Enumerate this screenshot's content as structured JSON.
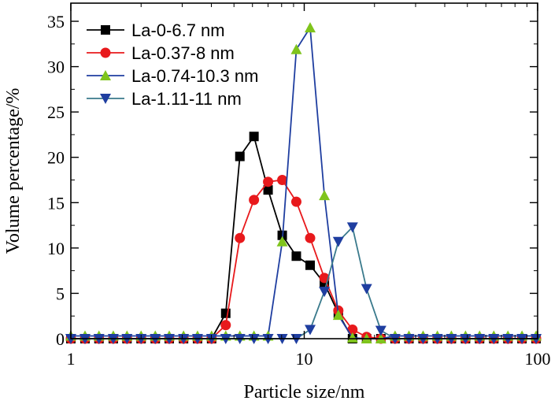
{
  "chart_data": {
    "type": "line",
    "xlabel": "Particle size/nm",
    "ylabel": "Volume percentage/%",
    "x_scale": "log",
    "xlim": [
      1,
      100
    ],
    "ylim": [
      0,
      37
    ],
    "x_ticks": [
      1,
      10,
      100
    ],
    "x_tick_labels": [
      "1",
      "10",
      "100"
    ],
    "y_ticks": [
      0,
      5,
      10,
      15,
      20,
      25,
      30,
      35
    ],
    "y_tick_labels": [
      "0",
      "5",
      "10",
      "15",
      "20",
      "25",
      "30",
      "35"
    ],
    "grid": false,
    "legend_position": "top-left",
    "x": [
      1.0,
      1.15,
      1.32,
      1.52,
      1.74,
      2.0,
      2.3,
      2.64,
      3.04,
      3.49,
      4.01,
      4.61,
      5.3,
      6.09,
      7.0,
      8.05,
      9.25,
      10.6,
      12.2,
      14.0,
      16.1,
      18.5,
      21.3,
      24.5,
      28.1,
      32.3,
      37.2,
      42.7,
      49.1,
      56.4,
      64.9,
      74.6,
      85.7,
      98.5
    ],
    "series": [
      {
        "name": "La-0-6.7 nm",
        "color": "#000000",
        "marker": "square",
        "values": [
          0,
          0,
          0,
          0,
          0,
          0,
          0,
          0,
          0,
          0,
          0,
          2.8,
          20.1,
          22.3,
          16.4,
          11.4,
          9.1,
          8.1,
          6.1,
          2.8,
          0,
          0,
          0,
          0,
          0,
          0,
          0,
          0,
          0,
          0,
          0,
          0,
          0,
          0
        ]
      },
      {
        "name": "La-0.37-8 nm",
        "color": "#e8191c",
        "marker": "circle",
        "values": [
          0,
          0,
          0,
          0,
          0,
          0,
          0,
          0,
          0,
          0,
          0,
          1.5,
          11.1,
          15.3,
          17.3,
          17.5,
          15.1,
          11.1,
          6.7,
          3.1,
          1.0,
          0.2,
          0,
          0,
          0,
          0,
          0,
          0,
          0,
          0,
          0,
          0,
          0,
          0
        ]
      },
      {
        "name": "La-0.74-10.3 nm",
        "color": "#7fc41c",
        "line_color": "#1f3ea0",
        "marker": "triangle-up",
        "values": [
          0.3,
          0.3,
          0.3,
          0.3,
          0.3,
          0.3,
          0.3,
          0.3,
          0.3,
          0.3,
          0.3,
          0.3,
          0.3,
          0.3,
          0.3,
          10.7,
          31.9,
          34.3,
          15.8,
          2.6,
          0.1,
          0,
          0,
          0.3,
          0.3,
          0.3,
          0.3,
          0.3,
          0.3,
          0.3,
          0.3,
          0.3,
          0.3,
          0.3
        ]
      },
      {
        "name": "La-1.11-11 nm",
        "color": "#1f3ea0",
        "line_color": "#3a7a8c",
        "marker": "triangle-down",
        "values": [
          0,
          0,
          0,
          0,
          0,
          0,
          0,
          0,
          0,
          0,
          0,
          0,
          0,
          0,
          0,
          0,
          0,
          1.0,
          5.2,
          10.7,
          12.3,
          5.5,
          0.9,
          0,
          0,
          0,
          0,
          0,
          0,
          0,
          0,
          0,
          0,
          0
        ]
      }
    ]
  }
}
